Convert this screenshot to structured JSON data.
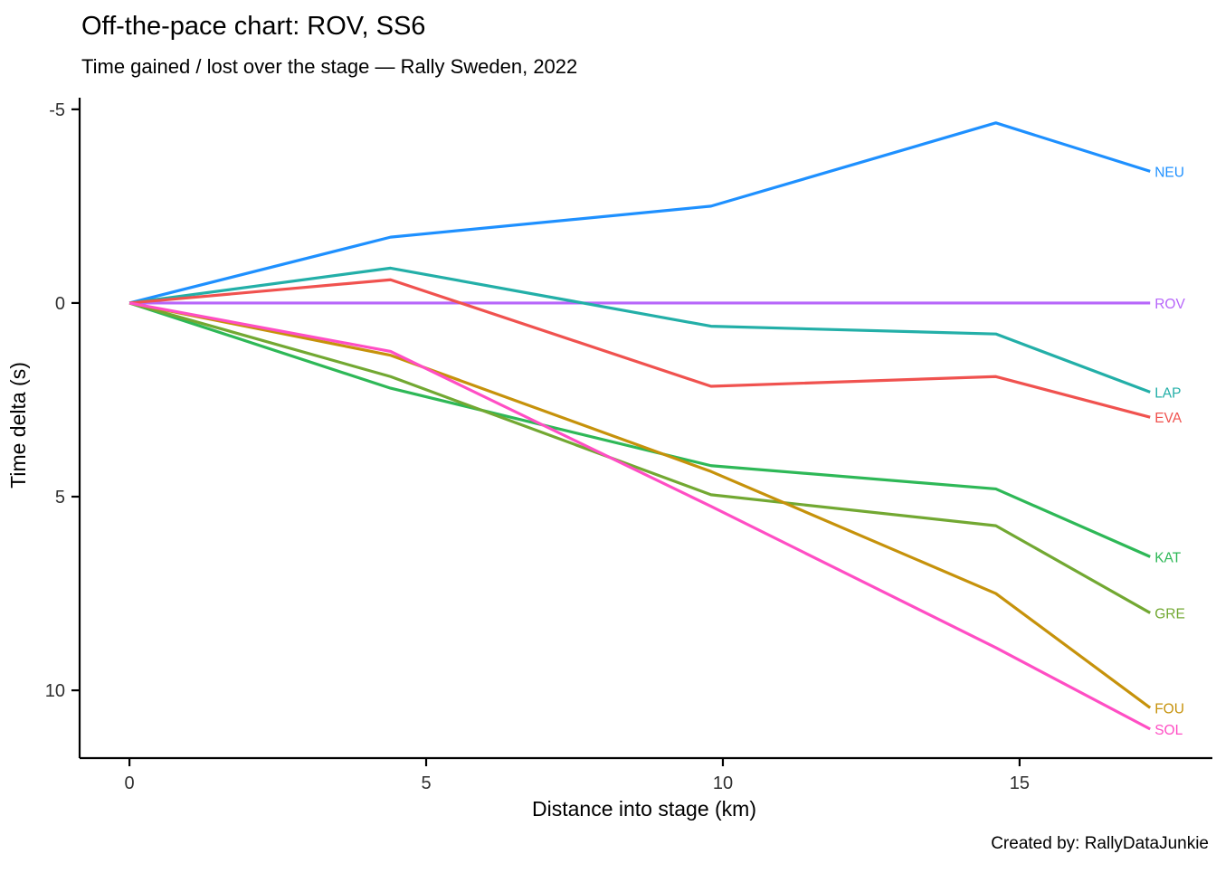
{
  "caption": "Created by: RallyDataJunkie",
  "chart_data": {
    "type": "line",
    "title": "Off-the-pace chart: ROV, SS6",
    "subtitle": "Time gained / lost over the stage — Rally Sweden, 2022",
    "xlabel": "Distance into stage (km)",
    "ylabel": "Time delta (s)",
    "x": [
      0,
      4.4,
      9.8,
      14.6,
      17.2
    ],
    "series": [
      {
        "name": "NEU",
        "color": "#1E90FF",
        "values": [
          0,
          -1.7,
          -2.5,
          -4.65,
          -3.4
        ]
      },
      {
        "name": "ROV",
        "color": "#B766FA",
        "values": [
          0,
          0,
          0,
          0,
          0
        ]
      },
      {
        "name": "LAP",
        "color": "#23AFA8",
        "values": [
          0,
          -0.9,
          0.6,
          0.8,
          2.3
        ]
      },
      {
        "name": "EVA",
        "color": "#F0524F",
        "values": [
          0,
          -0.6,
          2.15,
          1.9,
          2.95
        ]
      },
      {
        "name": "KAT",
        "color": "#2EB857",
        "values": [
          0,
          2.2,
          4.2,
          4.8,
          6.55
        ]
      },
      {
        "name": "GRE",
        "color": "#72A832",
        "values": [
          0,
          1.9,
          4.95,
          5.75,
          8.0
        ]
      },
      {
        "name": "FOU",
        "color": "#C6920B",
        "values": [
          0,
          1.35,
          4.35,
          7.5,
          10.45
        ]
      },
      {
        "name": "SOL",
        "color": "#FF4EC4",
        "values": [
          0,
          1.25,
          5.25,
          8.9,
          11.0
        ]
      }
    ],
    "x_ticks": [
      0,
      5,
      10,
      15
    ],
    "y_ticks": [
      -5,
      0,
      5,
      10
    ],
    "xlim": [
      -0.84,
      18.31
    ],
    "ylim": [
      -5.3,
      11.75
    ],
    "y_inverted": true,
    "grid": false,
    "legend": "direct-line-end-labels"
  }
}
